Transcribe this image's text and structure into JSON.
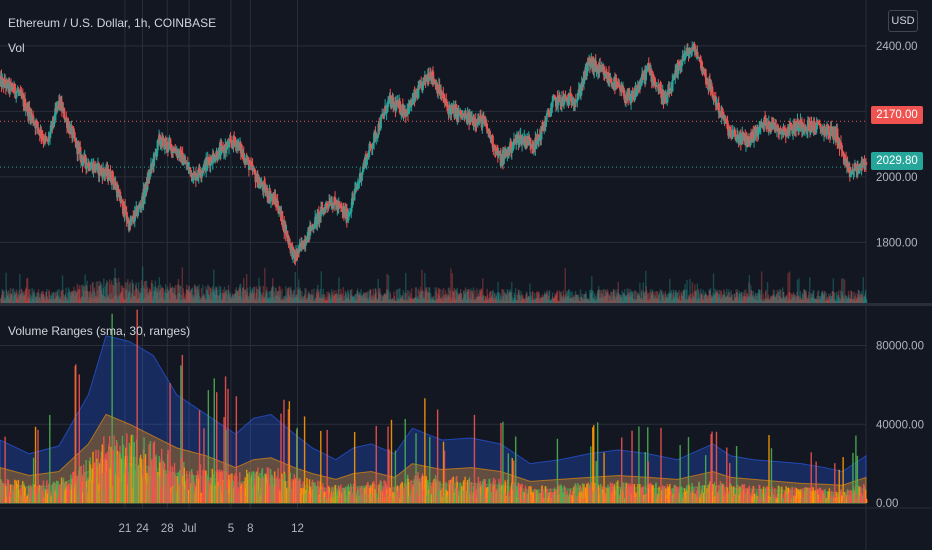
{
  "header": {
    "title": "Ethereum / U.S. Dollar, 1h, COINBASE",
    "vol_label": "Vol",
    "currency_button": "USD"
  },
  "indicator": {
    "title": "Volume Ranges (sma, 30, ranges)"
  },
  "price_tags": {
    "red": {
      "label": "2170.00",
      "color": "#ef5350"
    },
    "green": {
      "label": "2029.80",
      "color": "#26a69a"
    }
  },
  "colors": {
    "background": "#131722",
    "grid": "#2a2e39",
    "up": "#26a69a",
    "down": "#ef5350",
    "band_blue": "#2962ff",
    "band_orange": "#ff9800",
    "band_green": "#4caf50"
  },
  "chart_data": [
    {
      "type": "candlestick",
      "title": "Ethereum / U.S. Dollar, 1h, COINBASE",
      "x_ticks": [
        "21",
        "24",
        "28",
        "Jul",
        "5",
        "8",
        "12"
      ],
      "y_ticks": [
        1800,
        2000,
        2200,
        2400
      ],
      "y_tick_labels": [
        "1800.00",
        "2000.00",
        "2200.00",
        "2400.00"
      ],
      "ylim": [
        1615,
        2540
      ],
      "reference_lines": [
        2170.0
      ],
      "last_price": 2029.8,
      "grid": true,
      "path_points": [
        [
          0,
          2290
        ],
        [
          3,
          2260
        ],
        [
          8,
          2100
        ],
        [
          10,
          2230
        ],
        [
          14,
          2050
        ],
        [
          19,
          2000
        ],
        [
          22,
          1850
        ],
        [
          24,
          1920
        ],
        [
          27,
          2110
        ],
        [
          30,
          2080
        ],
        [
          33,
          2000
        ],
        [
          36,
          2060
        ],
        [
          40,
          2110
        ],
        [
          44,
          1980
        ],
        [
          47,
          1920
        ],
        [
          50,
          1750
        ],
        [
          53,
          1850
        ],
        [
          56,
          1930
        ],
        [
          59,
          1880
        ],
        [
          62,
          2050
        ],
        [
          66,
          2230
        ],
        [
          69,
          2200
        ],
        [
          73,
          2320
        ],
        [
          76,
          2210
        ],
        [
          79,
          2180
        ],
        [
          82,
          2170
        ],
        [
          85,
          2050
        ],
        [
          88,
          2120
        ],
        [
          91,
          2100
        ],
        [
          94,
          2230
        ],
        [
          98,
          2240
        ],
        [
          100,
          2350
        ],
        [
          104,
          2290
        ],
        [
          107,
          2230
        ],
        [
          110,
          2330
        ],
        [
          113,
          2230
        ],
        [
          116,
          2370
        ],
        [
          118,
          2390
        ],
        [
          121,
          2250
        ],
        [
          124,
          2130
        ],
        [
          127,
          2110
        ],
        [
          130,
          2170
        ],
        [
          133,
          2140
        ],
        [
          136,
          2160
        ],
        [
          139,
          2150
        ],
        [
          142,
          2130
        ],
        [
          144,
          2010
        ],
        [
          147,
          2040
        ]
      ]
    },
    {
      "type": "area",
      "title": "Volume Ranges (sma, 30, ranges)",
      "y_ticks": [
        0,
        40000,
        80000
      ],
      "y_tick_labels": [
        "0.00",
        "40000.00",
        "80000.00"
      ],
      "ylim": [
        0,
        95000
      ],
      "grid": true,
      "series": [
        {
          "color": "#2962ff",
          "points": [
            [
              0,
              32000
            ],
            [
              5,
              25000
            ],
            [
              10,
              29000
            ],
            [
              15,
              55000
            ],
            [
              18,
              85000
            ],
            [
              22,
              82000
            ],
            [
              26,
              75000
            ],
            [
              30,
              55000
            ],
            [
              35,
              45000
            ],
            [
              40,
              35000
            ],
            [
              43,
              43000
            ],
            [
              46,
              45000
            ],
            [
              50,
              35000
            ],
            [
              53,
              28000
            ],
            [
              57,
              22000
            ],
            [
              60,
              28000
            ],
            [
              63,
              30000
            ],
            [
              67,
              25000
            ],
            [
              70,
              38000
            ],
            [
              75,
              32000
            ],
            [
              80,
              33000
            ],
            [
              85,
              30000
            ],
            [
              90,
              20000
            ],
            [
              95,
              22000
            ],
            [
              100,
              25000
            ],
            [
              105,
              27000
            ],
            [
              110,
              25000
            ],
            [
              115,
              22000
            ],
            [
              118,
              26000
            ],
            [
              121,
              30000
            ],
            [
              124,
              24000
            ],
            [
              128,
              22000
            ],
            [
              132,
              21000
            ],
            [
              136,
              20000
            ],
            [
              140,
              18000
            ],
            [
              143,
              16000
            ],
            [
              147,
              24000
            ]
          ]
        },
        {
          "color": "#ff9800",
          "points": [
            [
              0,
              18000
            ],
            [
              5,
              14000
            ],
            [
              10,
              16000
            ],
            [
              15,
              30000
            ],
            [
              18,
              45000
            ],
            [
              22,
              40000
            ],
            [
              26,
              34000
            ],
            [
              30,
              28000
            ],
            [
              35,
              24000
            ],
            [
              40,
              18000
            ],
            [
              43,
              22000
            ],
            [
              46,
              23000
            ],
            [
              50,
              18000
            ],
            [
              53,
              15000
            ],
            [
              57,
              12000
            ],
            [
              60,
              15000
            ],
            [
              63,
              16000
            ],
            [
              67,
              13000
            ],
            [
              70,
              20000
            ],
            [
              75,
              17000
            ],
            [
              80,
              18000
            ],
            [
              85,
              16000
            ],
            [
              90,
              11000
            ],
            [
              95,
              12000
            ],
            [
              100,
              13000
            ],
            [
              105,
              14000
            ],
            [
              110,
              13000
            ],
            [
              115,
              12000
            ],
            [
              118,
              14000
            ],
            [
              121,
              16000
            ],
            [
              124,
              13000
            ],
            [
              128,
              12000
            ],
            [
              132,
              11000
            ],
            [
              136,
              10000
            ],
            [
              140,
              9500
            ],
            [
              143,
              9000
            ],
            [
              147,
              13000
            ]
          ]
        },
        {
          "color": "#4caf50",
          "points": [
            [
              0,
              10000
            ],
            [
              5,
              8000
            ],
            [
              10,
              9000
            ],
            [
              15,
              16000
            ],
            [
              18,
              22000
            ],
            [
              22,
              20000
            ],
            [
              26,
              18000
            ],
            [
              30,
              15000
            ],
            [
              35,
              13000
            ],
            [
              40,
              10000
            ],
            [
              43,
              12000
            ],
            [
              46,
              12500
            ],
            [
              50,
              10000
            ],
            [
              53,
              8000
            ],
            [
              57,
              7000
            ],
            [
              60,
              8000
            ],
            [
              63,
              9000
            ],
            [
              67,
              7500
            ],
            [
              70,
              11000
            ],
            [
              75,
              9500
            ],
            [
              80,
              10000
            ],
            [
              85,
              9000
            ],
            [
              90,
              6500
            ],
            [
              95,
              7000
            ],
            [
              100,
              7500
            ],
            [
              105,
              8000
            ],
            [
              110,
              7500
            ],
            [
              115,
              7000
            ],
            [
              118,
              8000
            ],
            [
              121,
              9000
            ],
            [
              124,
              7500
            ],
            [
              128,
              7000
            ],
            [
              132,
              6500
            ],
            [
              136,
              6000
            ],
            [
              140,
              5500
            ],
            [
              143,
              5200
            ],
            [
              147,
              7500
            ]
          ]
        }
      ]
    }
  ]
}
